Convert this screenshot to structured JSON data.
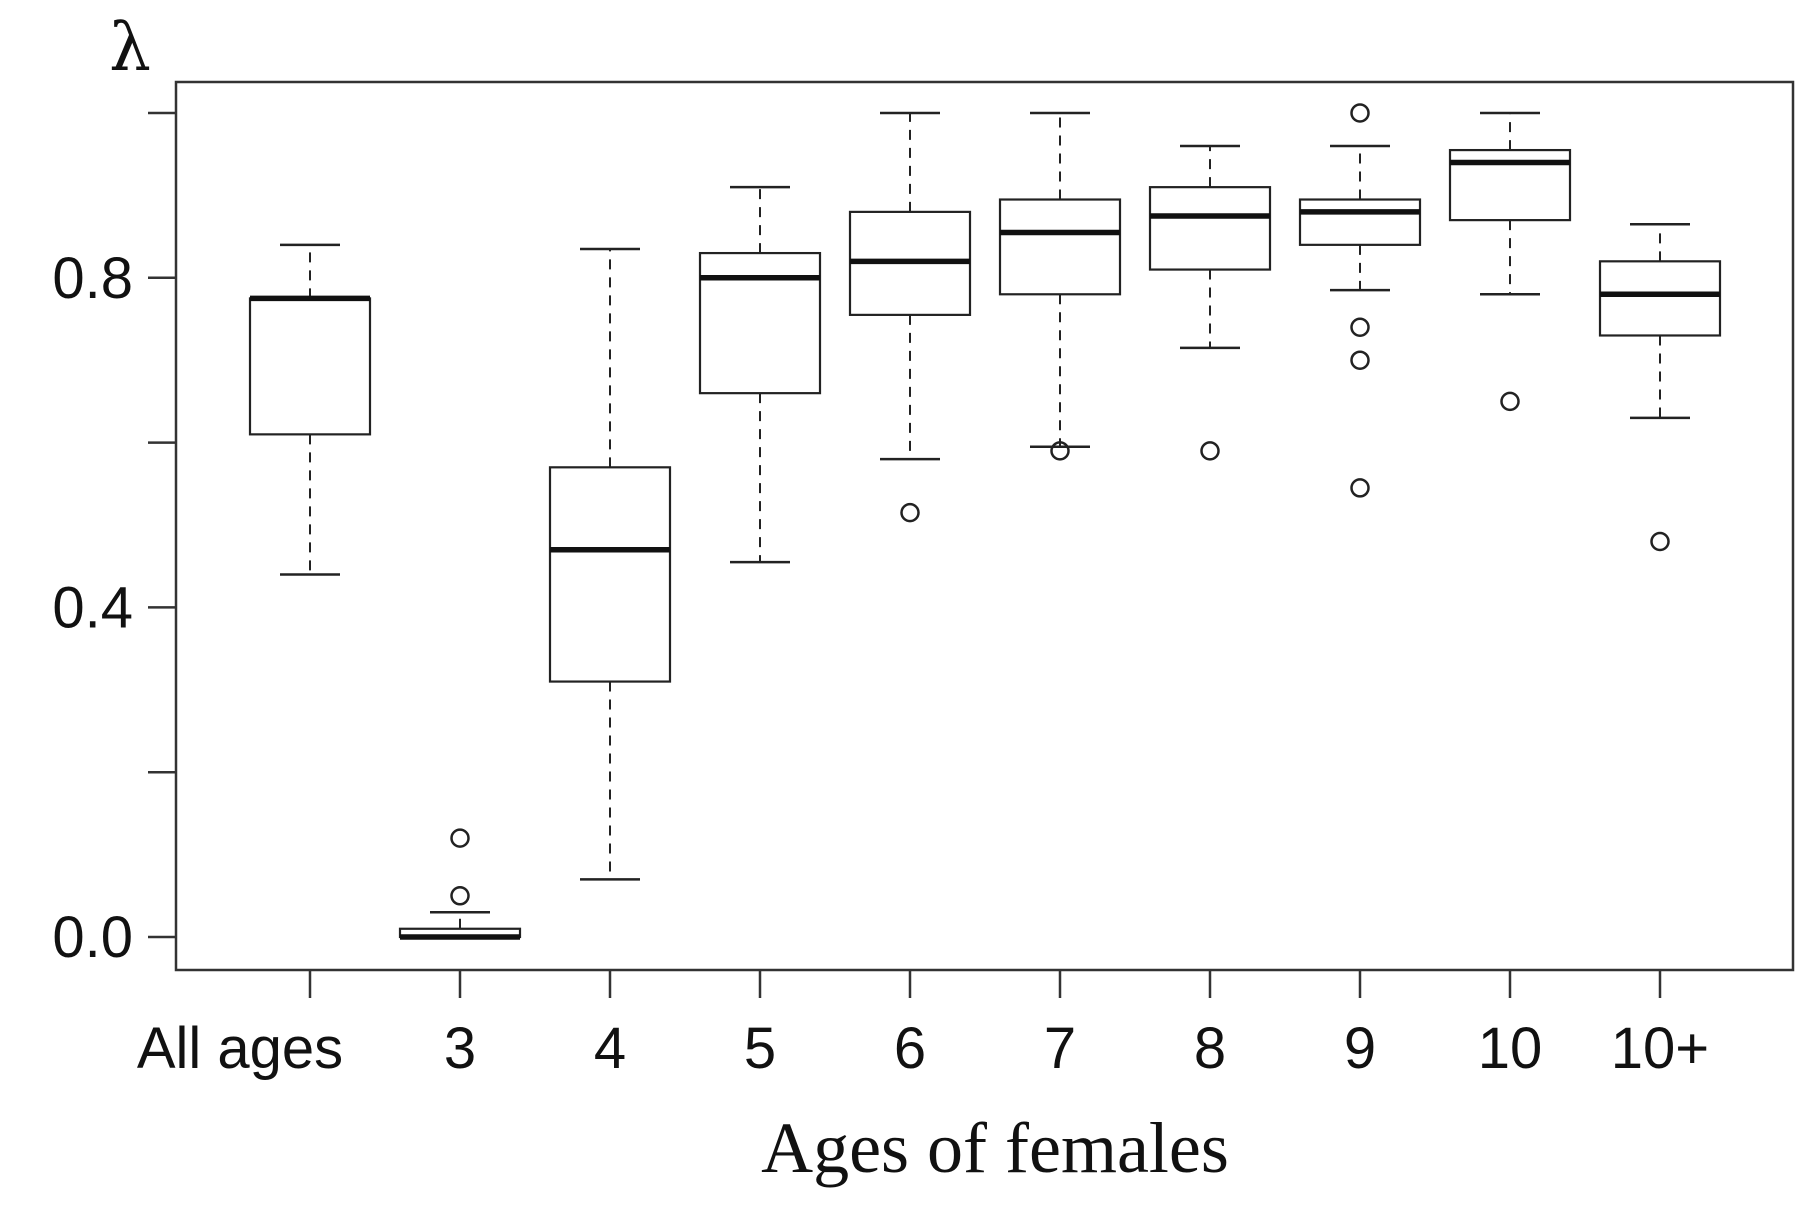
{
  "chart_data": {
    "type": "boxplot",
    "xlabel": "Ages of females",
    "ylabel": "λ",
    "ylim": [
      -0.04,
      1.04
    ],
    "yticks": [
      0.0,
      0.4,
      0.8
    ],
    "ytick_labels": [
      "0.0",
      "0.4",
      "0.8"
    ],
    "categories": [
      "All ages",
      "3",
      "4",
      "5",
      "6",
      "7",
      "8",
      "9",
      "10",
      "10+"
    ],
    "boxes": [
      {
        "category": "All ages",
        "whisker_low": 0.44,
        "q1": 0.61,
        "median": 0.775,
        "q3": 0.775,
        "whisker_high": 0.84,
        "outliers": []
      },
      {
        "category": "3",
        "whisker_low": 0.0,
        "q1": 0.0,
        "median": 0.0,
        "q3": 0.01,
        "whisker_high": 0.03,
        "outliers": [
          0.05,
          0.12
        ]
      },
      {
        "category": "4",
        "whisker_low": 0.07,
        "q1": 0.31,
        "median": 0.47,
        "q3": 0.57,
        "whisker_high": 0.835,
        "outliers": []
      },
      {
        "category": "5",
        "whisker_low": 0.455,
        "q1": 0.66,
        "median": 0.8,
        "q3": 0.83,
        "whisker_high": 0.91,
        "outliers": []
      },
      {
        "category": "6",
        "whisker_low": 0.58,
        "q1": 0.755,
        "median": 0.82,
        "q3": 0.88,
        "whisker_high": 1.0,
        "outliers": [
          0.515
        ]
      },
      {
        "category": "7",
        "whisker_low": 0.595,
        "q1": 0.78,
        "median": 0.855,
        "q3": 0.895,
        "whisker_high": 1.0,
        "outliers": [
          0.59
        ]
      },
      {
        "category": "8",
        "whisker_low": 0.715,
        "q1": 0.81,
        "median": 0.875,
        "q3": 0.91,
        "whisker_high": 0.96,
        "outliers": [
          0.59
        ]
      },
      {
        "category": "9",
        "whisker_low": 0.785,
        "q1": 0.84,
        "median": 0.88,
        "q3": 0.895,
        "whisker_high": 0.96,
        "outliers": [
          0.545,
          0.7,
          0.74,
          1.0
        ]
      },
      {
        "category": "10",
        "whisker_low": 0.78,
        "q1": 0.87,
        "median": 0.94,
        "q3": 0.955,
        "whisker_high": 1.0,
        "outliers": [
          0.65
        ]
      },
      {
        "category": "10+",
        "whisker_low": 0.63,
        "q1": 0.73,
        "median": 0.78,
        "q3": 0.82,
        "whisker_high": 0.865,
        "outliers": [
          0.48
        ]
      }
    ]
  }
}
